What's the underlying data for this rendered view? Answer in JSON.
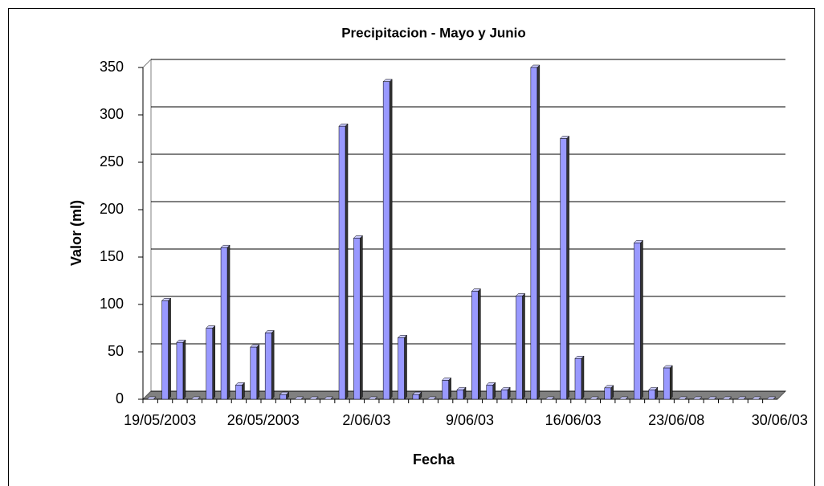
{
  "chart_data": {
    "type": "bar",
    "title": "Precipitacion - Mayo y Junio",
    "x_label": "Fecha",
    "y_label": "Valor (ml)",
    "categories": [
      "19/05/2003",
      null,
      null,
      null,
      null,
      null,
      null,
      "26/05/2003",
      null,
      null,
      null,
      null,
      null,
      null,
      "2/06/03",
      null,
      null,
      null,
      null,
      null,
      null,
      "9/06/03",
      null,
      null,
      null,
      null,
      null,
      null,
      "16/06/03",
      null,
      null,
      null,
      null,
      null,
      null,
      "23/06/08",
      null,
      null,
      null,
      null,
      null,
      null,
      "30/06/03"
    ],
    "values": [
      0,
      104,
      60,
      0,
      75,
      160,
      15,
      55,
      70,
      5,
      0,
      0,
      0,
      288,
      170,
      0,
      335,
      65,
      5,
      0,
      20,
      10,
      114,
      15,
      10,
      109,
      350,
      0,
      275,
      43,
      0,
      12,
      0,
      165,
      10,
      33,
      0,
      0,
      0,
      0,
      0,
      0,
      0
    ],
    "color": "#9999ff",
    "ylim": [
      0,
      350
    ],
    "yticks": [
      0,
      50,
      100,
      150,
      200,
      250,
      300,
      350
    ],
    "grid": true
  }
}
